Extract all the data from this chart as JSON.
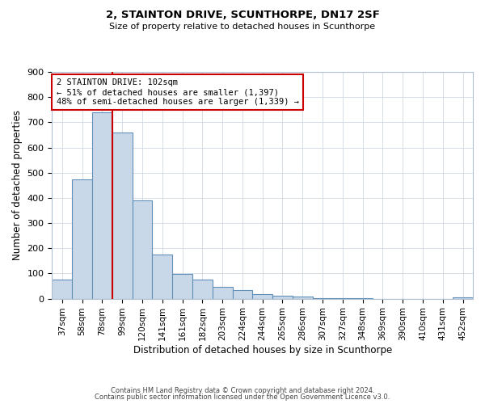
{
  "title": "2, STAINTON DRIVE, SCUNTHORPE, DN17 2SF",
  "subtitle": "Size of property relative to detached houses in Scunthorpe",
  "xlabel": "Distribution of detached houses by size in Scunthorpe",
  "ylabel": "Number of detached properties",
  "bar_labels": [
    "37sqm",
    "58sqm",
    "78sqm",
    "99sqm",
    "120sqm",
    "141sqm",
    "161sqm",
    "182sqm",
    "203sqm",
    "224sqm",
    "244sqm",
    "265sqm",
    "286sqm",
    "307sqm",
    "327sqm",
    "348sqm",
    "369sqm",
    "390sqm",
    "410sqm",
    "431sqm",
    "452sqm"
  ],
  "bar_values": [
    75,
    473,
    740,
    660,
    390,
    175,
    98,
    75,
    46,
    33,
    17,
    10,
    8,
    3,
    2,
    1,
    0,
    0,
    0,
    0,
    5
  ],
  "bar_color": "#c8d8e8",
  "bar_edge_color": "#6090b8",
  "ylim": [
    0,
    900
  ],
  "yticks": [
    0,
    100,
    200,
    300,
    400,
    500,
    600,
    700,
    800,
    900
  ],
  "property_line_color": "#cc0000",
  "annotation_title": "2 STAINTON DRIVE: 102sqm",
  "annotation_line1": "← 51% of detached houses are smaller (1,397)",
  "annotation_line2": "48% of semi-detached houses are larger (1,339) →",
  "annotation_box_color": "#ffffff",
  "annotation_box_edge": "#cc0000",
  "footer1": "Contains HM Land Registry data © Crown copyright and database right 2024.",
  "footer2": "Contains public sector information licensed under the Open Government Licence v3.0.",
  "background_color": "#ffffff",
  "grid_color": "#d0d8e0"
}
